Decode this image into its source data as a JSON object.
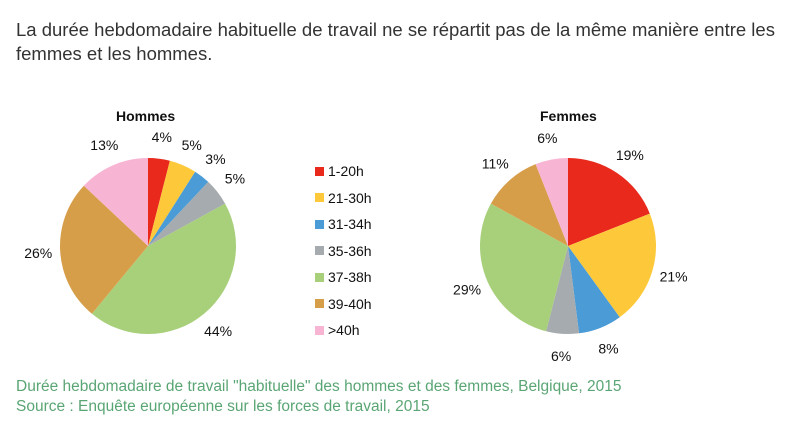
{
  "heading": "La durée hebdomadaire habituelle de travail ne se répartit pas de la même manière entre les femmes et les hommes.",
  "caption": "Durée hebdomadaire de travail \"habituelle\" des hommes et des femmes, Belgique, 2015",
  "source": "Source : Enquête européenne sur les forces de travail, 2015",
  "chart_data": [
    {
      "type": "pie",
      "title": "Hommes",
      "categories": [
        "1-20h",
        "21-30h",
        "31-34h",
        "35-36h",
        "37-38h",
        "39-40h",
        ">40h"
      ],
      "values": [
        4,
        5,
        3,
        5,
        44,
        26,
        13
      ],
      "labels": [
        "4%",
        "5%",
        "3%",
        "5%",
        "44%",
        "26%",
        "13%"
      ]
    },
    {
      "type": "pie",
      "title": "Femmes",
      "categories": [
        "1-20h",
        "21-30h",
        "31-34h",
        "35-36h",
        "37-38h",
        "39-40h",
        ">40h"
      ],
      "values": [
        19,
        21,
        8,
        6,
        29,
        11,
        6
      ],
      "labels": [
        "19%",
        "21%",
        "8%",
        "6%",
        "29%",
        "11%",
        "6%"
      ]
    }
  ],
  "legend": {
    "placement": "center",
    "items": [
      "1-20h",
      "21-30h",
      "31-34h",
      "35-36h",
      "37-38h",
      "39-40h",
      ">40h"
    ]
  },
  "colors": [
    "#e8291c",
    "#fdc93b",
    "#4a9bd6",
    "#a5abae",
    "#a8d07a",
    "#d79e4a",
    "#f8b4d3"
  ]
}
